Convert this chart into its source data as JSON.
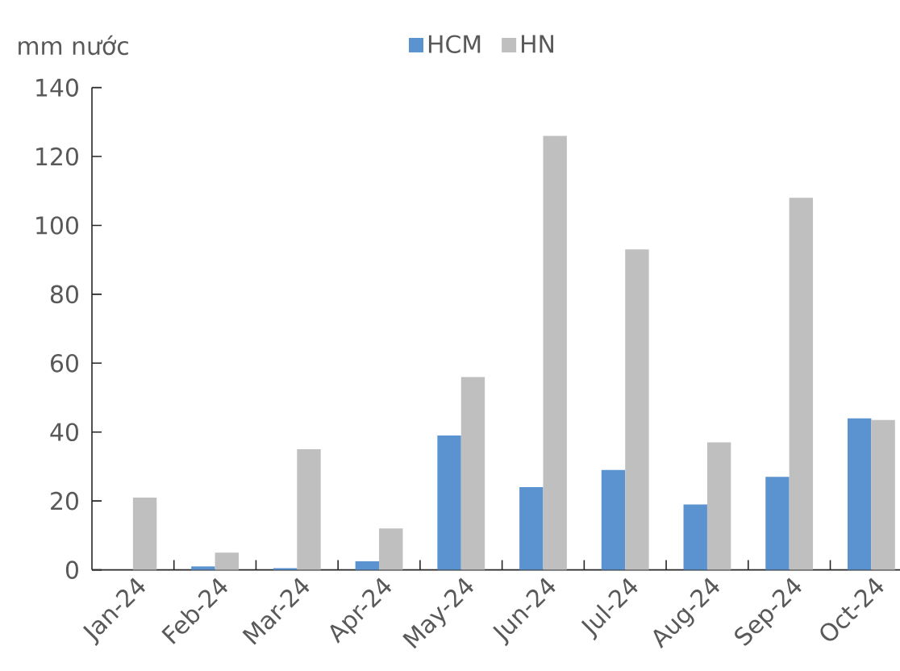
{
  "chart_data": {
    "type": "bar",
    "ylabel": "mm nước",
    "categories": [
      "Jan-24",
      "Feb-24",
      "Mar-24",
      "Apr-24",
      "May-24",
      "Jun-24",
      "Jul-24",
      "Aug-24",
      "Sep-24",
      "Oct-24"
    ],
    "series": [
      {
        "name": "HCM",
        "color": "#5b93d0",
        "values": [
          0,
          1,
          0.5,
          2.5,
          39,
          24,
          29,
          19,
          27,
          44
        ]
      },
      {
        "name": "HN",
        "color": "#bfbfbf",
        "values": [
          21,
          5,
          35,
          12,
          56,
          126,
          93,
          37,
          108,
          43.5
        ]
      }
    ],
    "ylim": [
      0,
      140
    ],
    "yticks": [
      0,
      20,
      40,
      60,
      80,
      100,
      120,
      140
    ],
    "legend": "top"
  }
}
